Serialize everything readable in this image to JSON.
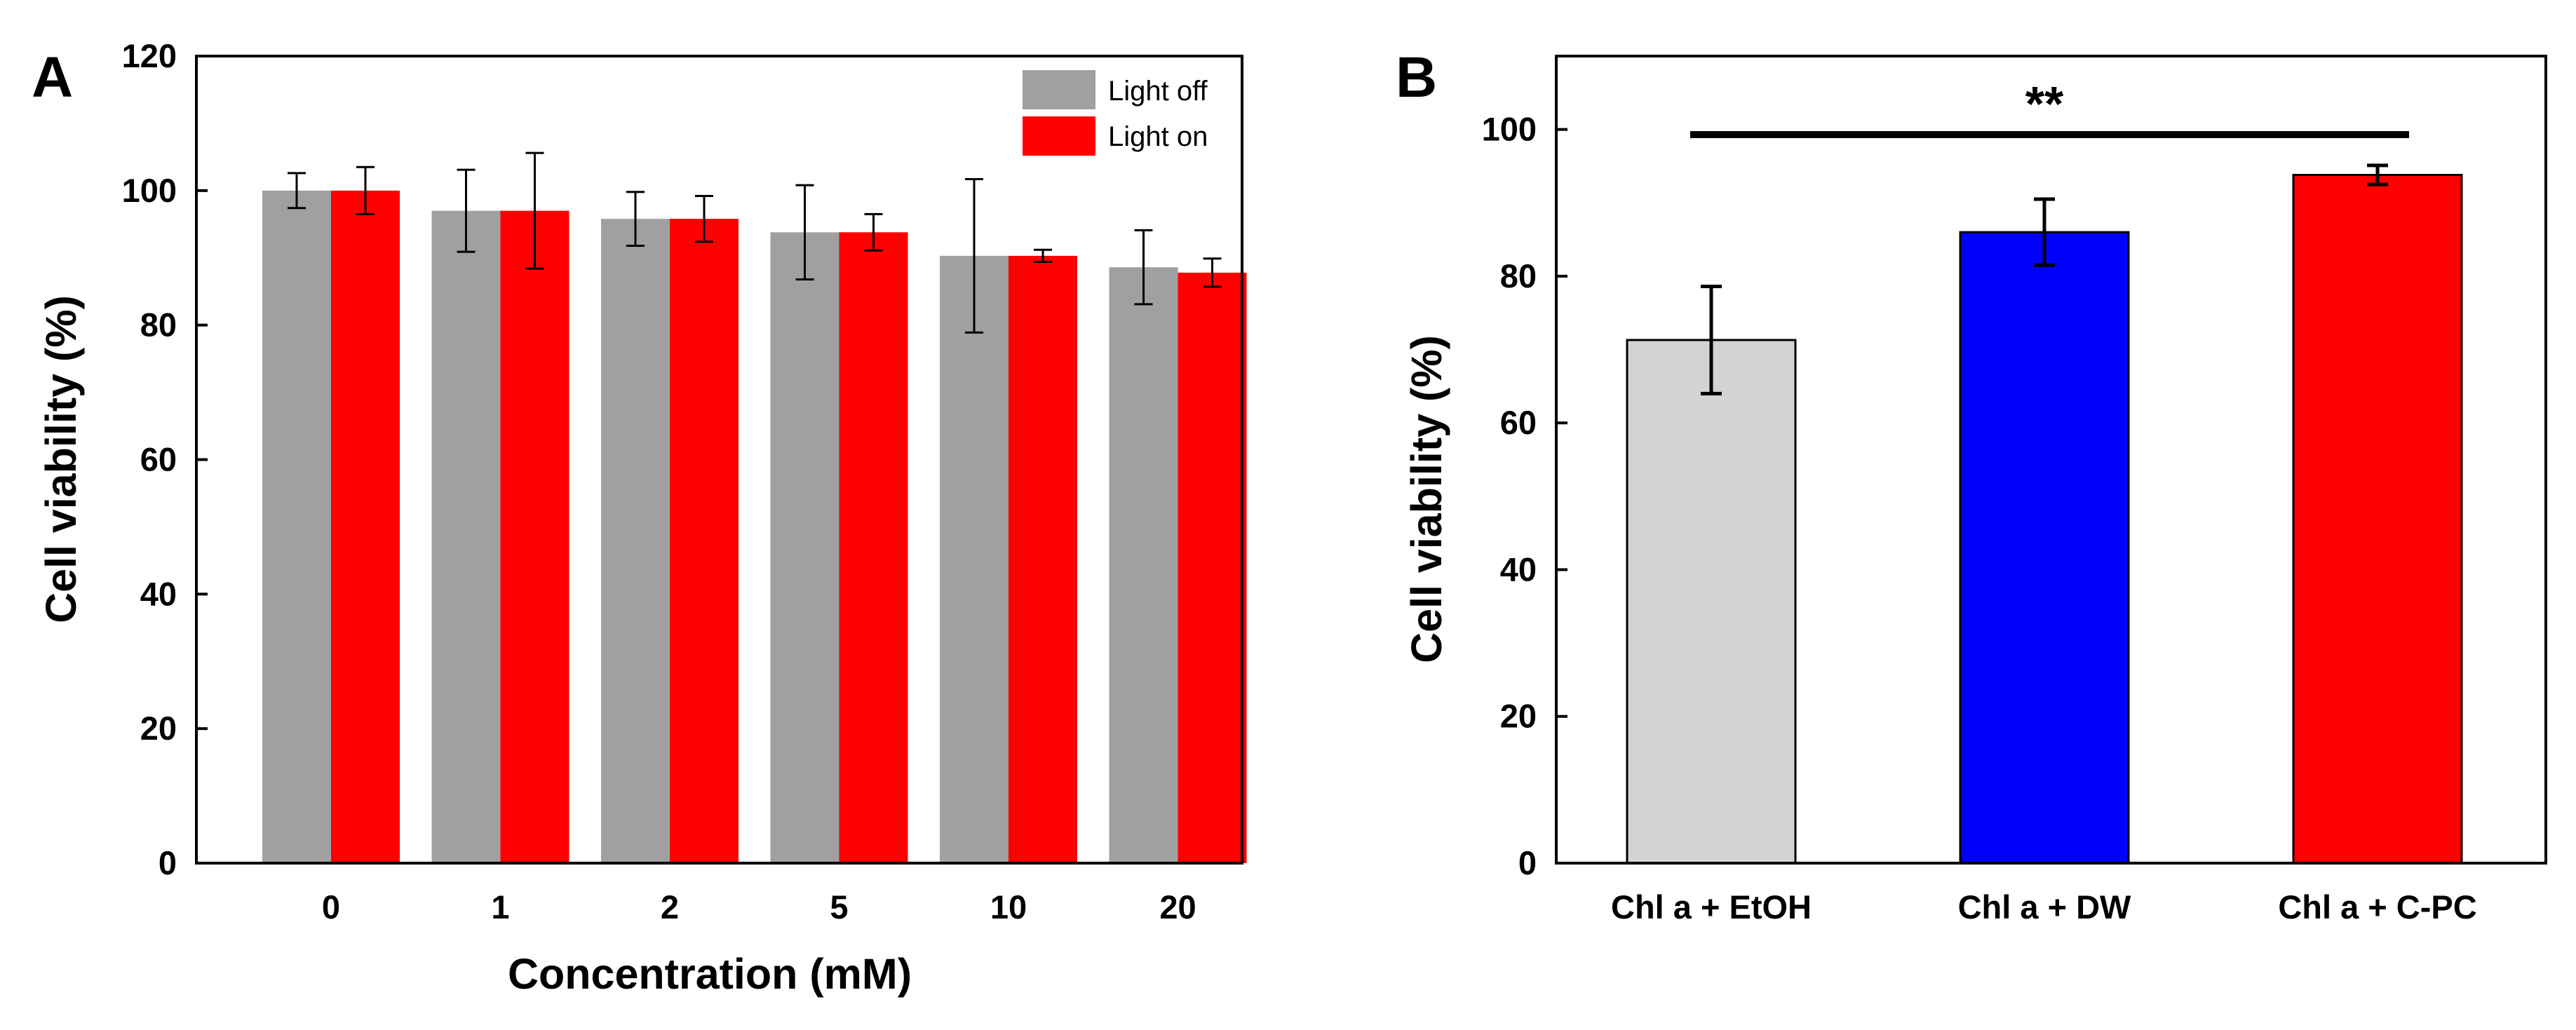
{
  "chart_data": [
    {
      "panel": "A",
      "type": "bar",
      "categories": [
        "0",
        "1",
        "2",
        "5",
        "10",
        "20"
      ],
      "series": [
        {
          "name": "Light off",
          "color": "#a0a0a0",
          "values": [
            100.0,
            97.0,
            95.8,
            93.8,
            90.3,
            88.6
          ],
          "errors": [
            2.6,
            6.1,
            4.0,
            7.0,
            11.4,
            5.5
          ]
        },
        {
          "name": "Light on",
          "color": "#ff0000",
          "values": [
            100.0,
            97.0,
            95.8,
            93.8,
            90.3,
            87.8
          ],
          "errors": [
            3.5,
            8.6,
            3.4,
            2.7,
            0.9,
            2.1
          ]
        }
      ],
      "xlabel": "Concentration (mM)",
      "ylabel": "Cell viability (%)",
      "ylim": [
        0,
        120
      ],
      "yticks": [
        "0",
        "20",
        "40",
        "60",
        "80",
        "100",
        "120"
      ],
      "legend_position": "top-right"
    },
    {
      "panel": "B",
      "type": "bar",
      "categories": [
        "Chl a + EtOH",
        "Chl a + DW",
        "Chl a + C-PC"
      ],
      "values": [
        71.3,
        86.0,
        93.8
      ],
      "errors": [
        7.3,
        4.5,
        1.3
      ],
      "colors": [
        "#d3d3d3",
        "#0000ff",
        "#ff0000"
      ],
      "xlabel": "",
      "ylabel": "Cell viability (%)",
      "ylim": [
        0,
        110
      ],
      "yticks": [
        "0",
        "20",
        "40",
        "60",
        "80",
        "100"
      ],
      "annotation": "**"
    }
  ]
}
